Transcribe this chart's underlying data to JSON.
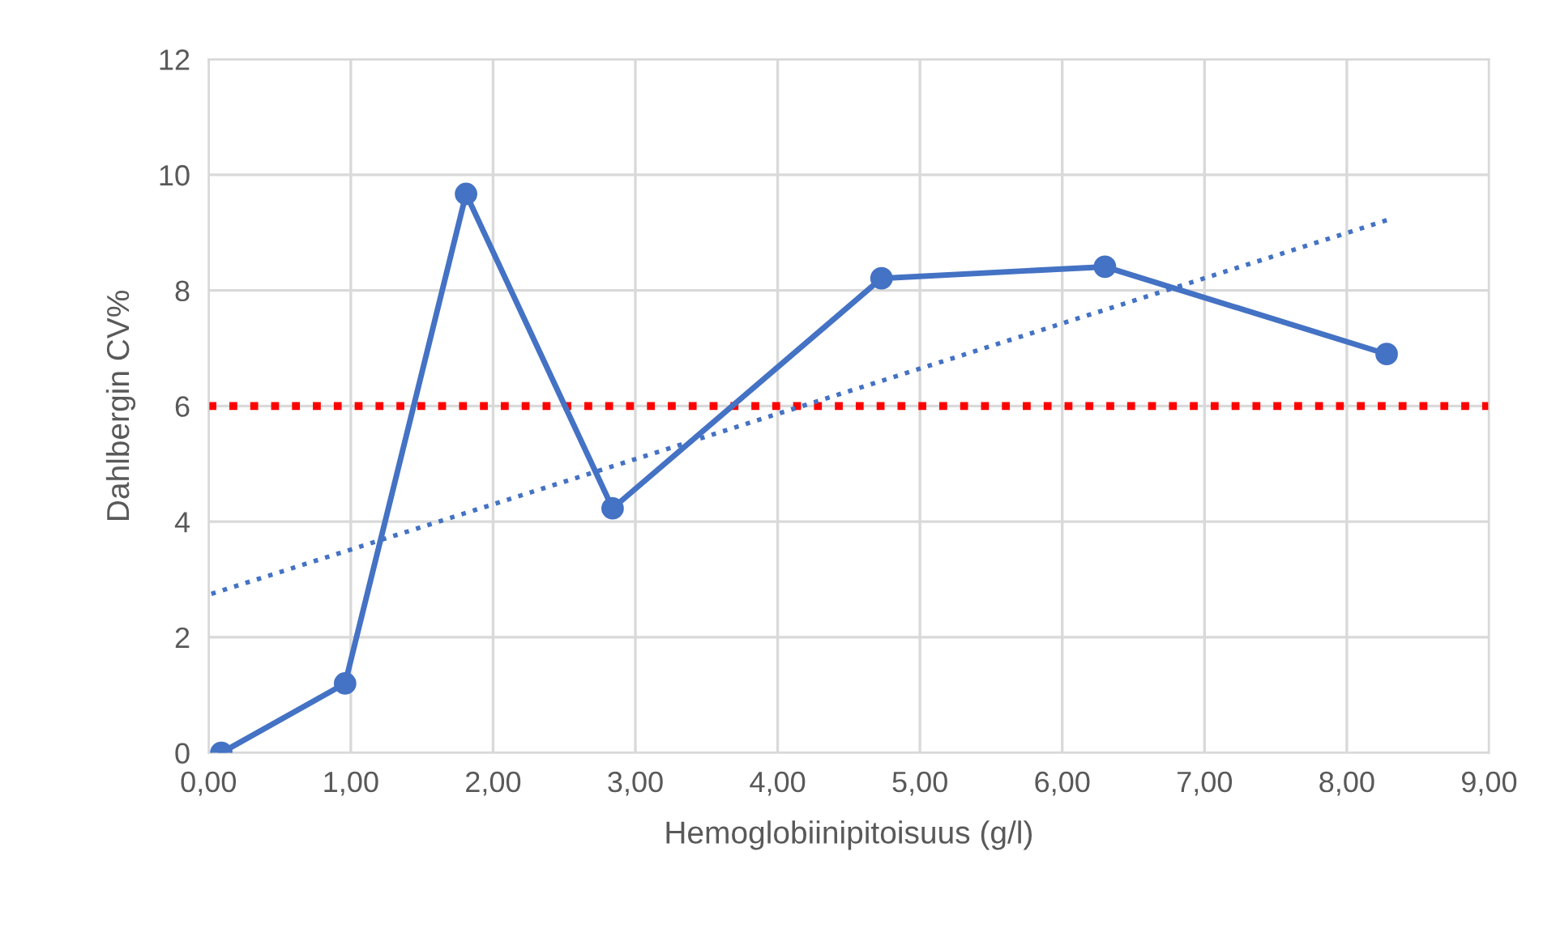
{
  "chart_data": {
    "type": "line",
    "xlabel": "Hemoglobiinipitoisuus (g/l)",
    "ylabel": "Dahlbergin CV%",
    "series": [
      {
        "color": "#4472c4",
        "marker": "circle",
        "line_style": "solid",
        "x": [
          0.09,
          0.96,
          1.81,
          2.84,
          4.73,
          6.3,
          8.28
        ],
        "values": [
          0.0,
          1.2,
          9.67,
          4.23,
          8.21,
          8.41,
          6.9
        ]
      },
      {
        "color": "#4472c4",
        "marker": "none",
        "line_style": "dotted",
        "x": [
          0.02,
          8.3
        ],
        "values": [
          2.75,
          9.23
        ]
      }
    ],
    "ref_lines": [
      {
        "axis": "y",
        "value": 6,
        "label": null,
        "color": "#ff0000",
        "line_style": "dotted"
      }
    ],
    "xlim": [
      0,
      9
    ],
    "ylim": [
      0,
      12
    ],
    "xticks": [
      {
        "value": 0,
        "label": "0,00"
      },
      {
        "value": 1,
        "label": "1,00"
      },
      {
        "value": 2,
        "label": "2,00"
      },
      {
        "value": 3,
        "label": "3,00"
      },
      {
        "value": 4,
        "label": "4,00"
      },
      {
        "value": 5,
        "label": "5,00"
      },
      {
        "value": 6,
        "label": "6,00"
      },
      {
        "value": 7,
        "label": "7,00"
      },
      {
        "value": 8,
        "label": "8,00"
      },
      {
        "value": 9,
        "label": "9,00"
      }
    ],
    "yticks": [
      0,
      2,
      4,
      6,
      8,
      10,
      12
    ],
    "grid": true,
    "legend": false
  }
}
